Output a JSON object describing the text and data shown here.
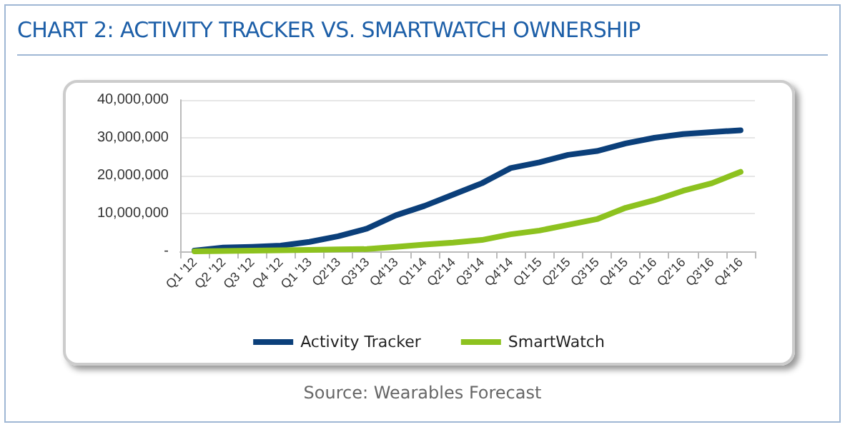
{
  "chart_data": {
    "type": "line",
    "title": "CHART 2: ACTIVITY TRACKER VS. SMARTWATCH OWNERSHIP",
    "categories": [
      "Q1 '12",
      "Q2 '12",
      "Q3 '12",
      "Q4 '12",
      "Q1 '13",
      "Q2'13",
      "Q3'13",
      "Q4'13",
      "Q1'14",
      "Q2'14",
      "Q3'14",
      "Q4'14",
      "Q1'15",
      "Q2'15",
      "Q3'15",
      "Q4'15",
      "Q1'16",
      "Q2'16",
      "Q3'16",
      "Q4'16"
    ],
    "series": [
      {
        "name": "Activity Tracker",
        "color": "#0b3f7a",
        "values": [
          200000,
          1000000,
          1200000,
          1500000,
          2500000,
          4000000,
          6000000,
          9500000,
          12000000,
          15000000,
          18000000,
          22000000,
          23500000,
          25500000,
          26500000,
          28500000,
          30000000,
          31000000,
          31500000,
          32000000
        ]
      },
      {
        "name": "SmartWatch",
        "color": "#8dc21f",
        "values": [
          0,
          100000,
          200000,
          300000,
          400000,
          500000,
          600000,
          1200000,
          1800000,
          2300000,
          3000000,
          4500000,
          5500000,
          7000000,
          8500000,
          11500000,
          13500000,
          16000000,
          18000000,
          21000000
        ]
      }
    ],
    "ylim": [
      0,
      40000000
    ],
    "yticks": [
      {
        "value": 0,
        "label": "-"
      },
      {
        "value": 10000000,
        "label": "10,000,000"
      },
      {
        "value": 20000000,
        "label": "20,000,000"
      },
      {
        "value": 30000000,
        "label": "30,000,000"
      },
      {
        "value": 40000000,
        "label": "40,000,000"
      }
    ],
    "grid": "y",
    "legend": "bottom",
    "marker": "none",
    "line_style": "solid",
    "annotations": [
      "Source: Wearables Forecast"
    ]
  }
}
